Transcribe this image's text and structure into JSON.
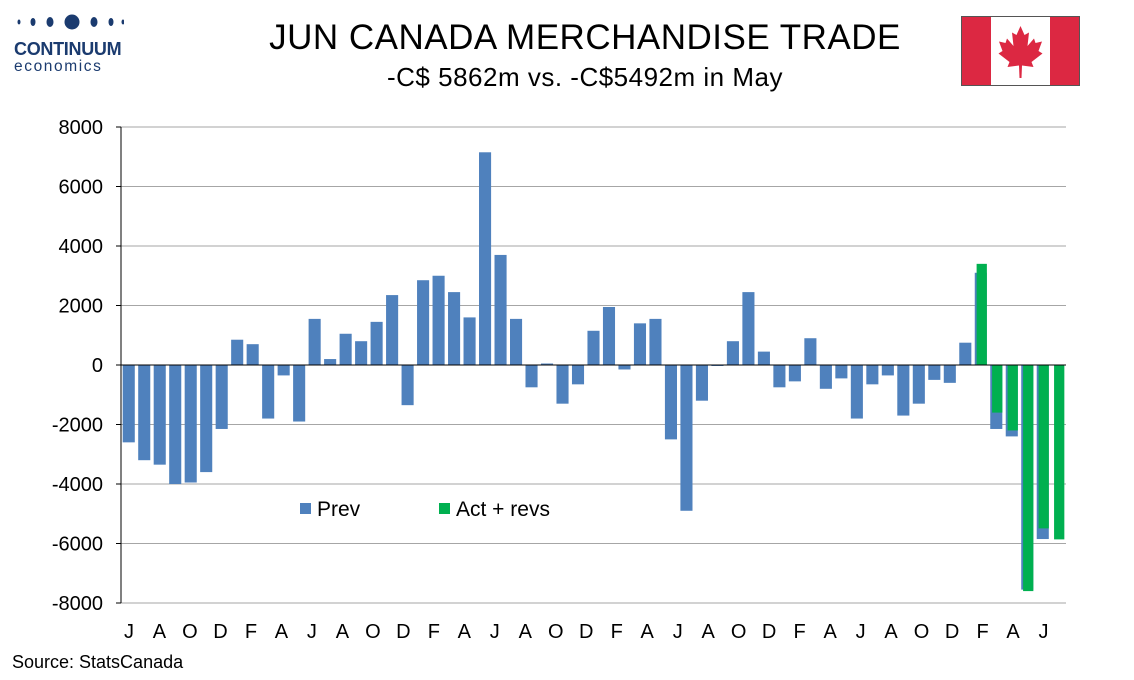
{
  "header": {
    "title": "JUN CANADA MERCHANDISE TRADE",
    "subtitle": "-C$ 5862m vs. -C$5492m in May",
    "logo_name": "CONTINUUM",
    "logo_sub": "economics"
  },
  "footer": {
    "source": "Source: StatsCanada"
  },
  "colors": {
    "prev": "#4f81bd",
    "act": "#00b050",
    "grid": "#a6a6a6",
    "flag_red": "#dc2842"
  },
  "chart_data": {
    "type": "bar",
    "ylim": [
      -8000,
      8000
    ],
    "yticks": [
      8000,
      6000,
      4000,
      2000,
      0,
      -2000,
      -4000,
      -6000,
      -8000
    ],
    "xtick_labels": [
      "J",
      "A",
      "O",
      "D",
      "F",
      "A",
      "J",
      "A",
      "O",
      "D",
      "F",
      "A",
      "J",
      "A",
      "O",
      "D",
      "F",
      "A",
      "J",
      "A",
      "O",
      "D",
      "F",
      "A",
      "J",
      "A",
      "O",
      "D",
      "F",
      "A",
      "J"
    ],
    "grid": true,
    "legend_position": "lower-left",
    "series": [
      {
        "name": "Prev",
        "values": [
          -2600,
          -3200,
          -3350,
          -4000,
          -3950,
          -3600,
          -2150,
          850,
          700,
          -1800,
          -350,
          -1900,
          1550,
          200,
          1050,
          800,
          1450,
          2350,
          -1350,
          2850,
          3000,
          2450,
          1600,
          7150,
          3700,
          1550,
          -750,
          50,
          -1300,
          -650,
          1150,
          1950,
          -150,
          1400,
          1550,
          -2500,
          -4900,
          -1200,
          0,
          800,
          2450,
          450,
          -750,
          -550,
          900,
          -800,
          -450,
          -1800,
          -650,
          -350,
          -1700,
          -1300,
          -500,
          -600,
          750,
          3100,
          -2150,
          -2400,
          -7550,
          -5850,
          null
        ]
      },
      {
        "name": "Act + revs",
        "values": [
          null,
          null,
          null,
          null,
          null,
          null,
          null,
          null,
          null,
          null,
          null,
          null,
          null,
          null,
          null,
          null,
          null,
          null,
          null,
          null,
          null,
          null,
          null,
          null,
          null,
          null,
          null,
          null,
          null,
          null,
          null,
          null,
          null,
          null,
          null,
          null,
          null,
          null,
          null,
          null,
          null,
          null,
          null,
          null,
          null,
          null,
          null,
          null,
          null,
          null,
          null,
          null,
          null,
          null,
          null,
          3400,
          -1600,
          -2200,
          -7600,
          -5492,
          -5862
        ]
      }
    ]
  }
}
